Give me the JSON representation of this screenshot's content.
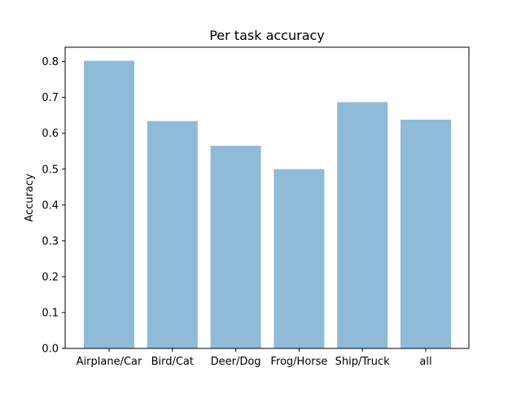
{
  "chart_data": {
    "type": "bar",
    "title": "Per task accuracy",
    "xlabel": "",
    "ylabel": "Accuracy",
    "categories": [
      "Airplane/Car",
      "Bird/Cat",
      "Deer/Dog",
      "Frog/Horse",
      "Ship/Truck",
      "all"
    ],
    "values": [
      0.802,
      0.634,
      0.565,
      0.5,
      0.687,
      0.638
    ],
    "ylim": [
      0,
      0.84
    ],
    "yticks": [
      0.0,
      0.1,
      0.2,
      0.3,
      0.4,
      0.5,
      0.6,
      0.7,
      0.8
    ],
    "ytick_labels": [
      "0.0",
      "0.1",
      "0.2",
      "0.3",
      "0.4",
      "0.5",
      "0.6",
      "0.7",
      "0.8"
    ],
    "bar_color": "#8fbbd9",
    "grid": false,
    "legend": "none"
  }
}
